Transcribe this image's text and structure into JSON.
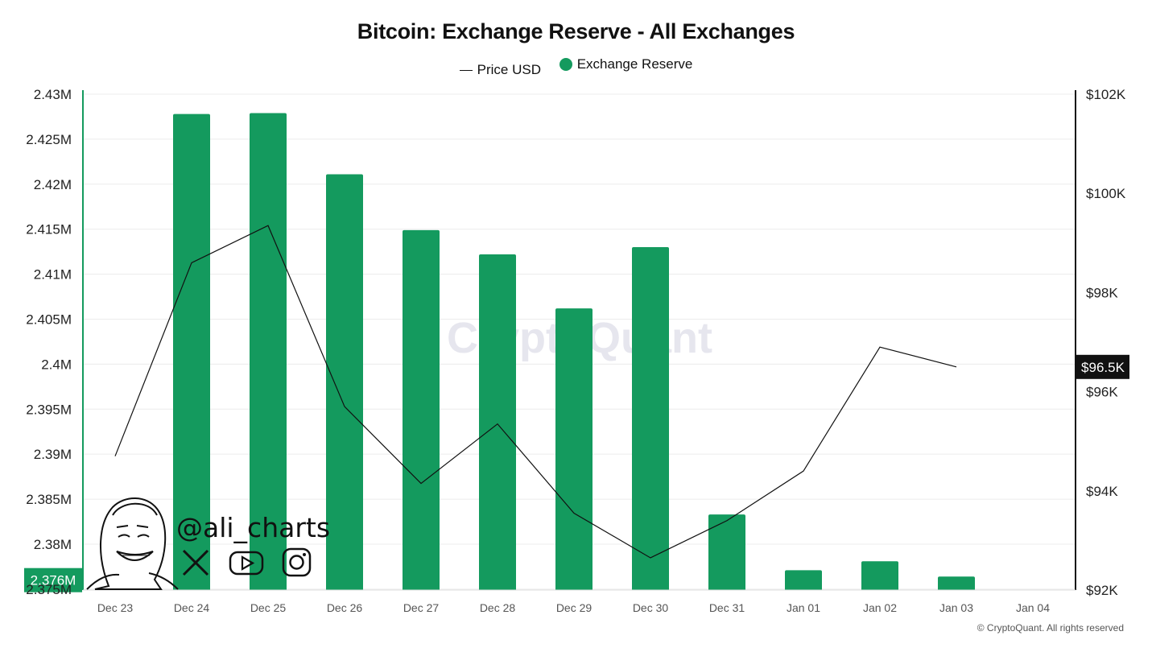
{
  "footer": "© CryptoQuant. All rights reserved",
  "watermark": {
    "brand": "CryptoQuant",
    "handle": "@ali_charts"
  },
  "colors": {
    "reserve": "#149a5e",
    "price": "#111111",
    "grid": "#ececec"
  },
  "chart_data": {
    "type": "bar",
    "title": "Bitcoin: Exchange Reserve - All Exchanges",
    "legend": [
      {
        "label": "Price USD",
        "kind": "line"
      },
      {
        "label": "Exchange Reserve",
        "kind": "dot"
      }
    ],
    "legend_position": "top-center",
    "categories": [
      "Dec 23",
      "Dec 24",
      "Dec 25",
      "Dec 26",
      "Dec 27",
      "Dec 28",
      "Dec 29",
      "Dec 30",
      "Dec 31",
      "Jan 01",
      "Jan 02",
      "Jan 03",
      "Jan 04"
    ],
    "series": [
      {
        "name": "Exchange Reserve",
        "axis": "left",
        "type": "bar",
        "values": [
          null,
          2.4278,
          2.4279,
          2.4211,
          2.4149,
          2.4122,
          2.4062,
          2.413,
          2.3833,
          2.3771,
          2.3781,
          2.3764,
          null
        ]
      },
      {
        "name": "Price USD",
        "axis": "right",
        "type": "line",
        "values": [
          94700,
          98600,
          99350,
          95700,
          94150,
          95350,
          93550,
          92650,
          93400,
          94400,
          96900,
          96500,
          null
        ]
      }
    ],
    "y_left": {
      "ticks": [
        "2.43M",
        "2.425M",
        "2.42M",
        "2.415M",
        "2.41M",
        "2.405M",
        "2.4M",
        "2.395M",
        "2.39M",
        "2.385M",
        "2.38M",
        "2.375M"
      ],
      "min": 2.3749,
      "max": 2.43,
      "current_label": "2.376M"
    },
    "y_right": {
      "ticks": [
        "$102K",
        "$100K",
        "$98K",
        "$96K",
        "$94K",
        "$92K"
      ],
      "min": 92000,
      "max": 102000,
      "current_label": "$96.5K"
    },
    "grid": true
  }
}
